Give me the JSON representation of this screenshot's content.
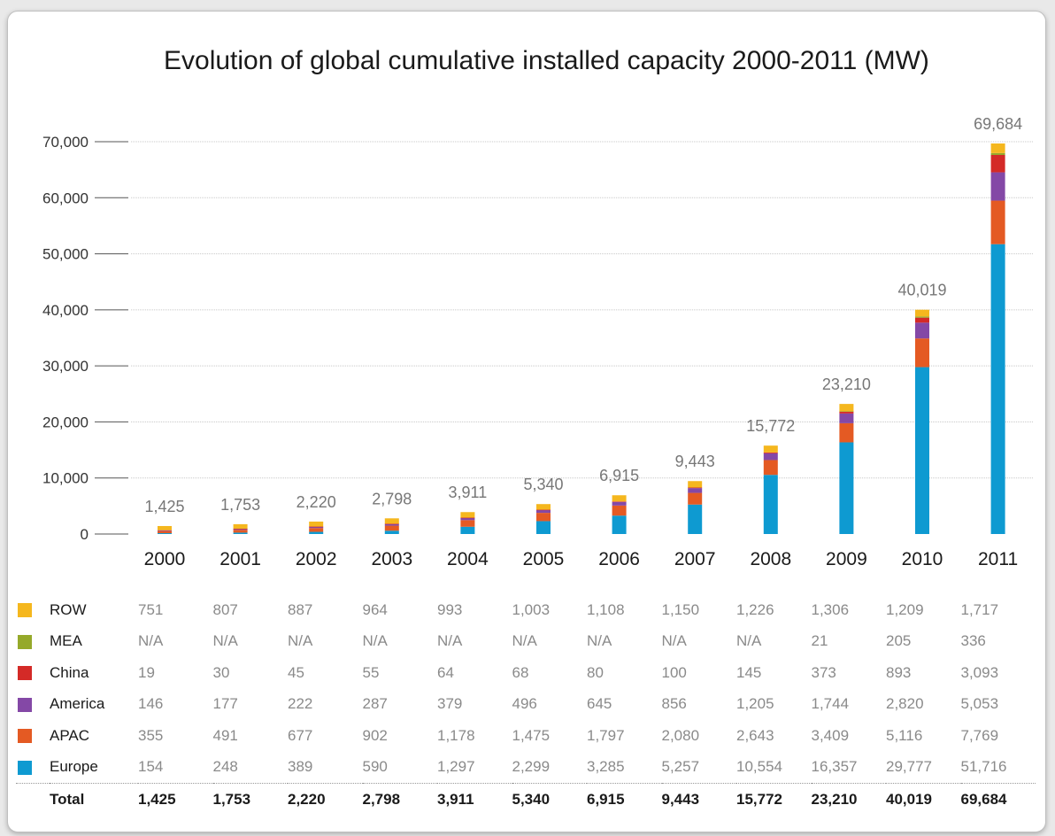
{
  "chart_data": {
    "type": "bar",
    "stacked": true,
    "title": "Evolution of global cumulative installed capacity 2000-2011 (MW)",
    "categories": [
      "2000",
      "2001",
      "2002",
      "2003",
      "2004",
      "2005",
      "2006",
      "2007",
      "2008",
      "2009",
      "2010",
      "2011"
    ],
    "y_ticks": [
      "0",
      "10,000",
      "20,000",
      "30,000",
      "40,000",
      "50,000",
      "60,000",
      "70,000"
    ],
    "ylim": [
      0,
      70000
    ],
    "grid": true,
    "series": [
      {
        "name": "Europe",
        "color": "#0e9ad1",
        "values": [
          154,
          248,
          389,
          590,
          1297,
          2299,
          3285,
          5257,
          10554,
          16357,
          29777,
          51716
        ]
      },
      {
        "name": "APAC",
        "color": "#e45a23",
        "values": [
          355,
          491,
          677,
          902,
          1178,
          1475,
          1797,
          2080,
          2643,
          3409,
          5116,
          7769
        ]
      },
      {
        "name": "America",
        "color": "#8448a6",
        "values": [
          146,
          177,
          222,
          287,
          379,
          496,
          645,
          856,
          1205,
          1744,
          2820,
          5053
        ]
      },
      {
        "name": "China",
        "color": "#d42a27",
        "values": [
          19,
          30,
          45,
          55,
          64,
          68,
          80,
          100,
          145,
          373,
          893,
          3093
        ]
      },
      {
        "name": "MEA",
        "color": "#95a92a",
        "values": [
          0,
          0,
          0,
          0,
          0,
          0,
          0,
          0,
          0,
          21,
          205,
          336
        ]
      },
      {
        "name": "ROW",
        "color": "#f5b71e",
        "values": [
          751,
          807,
          887,
          964,
          993,
          1003,
          1108,
          1150,
          1226,
          1306,
          1209,
          1717
        ]
      }
    ],
    "totals": [
      1425,
      1753,
      2220,
      2798,
      3911,
      5340,
      6915,
      9443,
      15772,
      23210,
      40019,
      69684
    ],
    "total_labels": [
      "1,425",
      "1,753",
      "2,220",
      "2,798",
      "3,911",
      "5,340",
      "6,915",
      "9,443",
      "15,772",
      "23,210",
      "40,019",
      "69,684"
    ]
  },
  "table": {
    "rows": [
      {
        "name": "ROW",
        "color": "#f5b71e",
        "cells": [
          "751",
          "807",
          "887",
          "964",
          "993",
          "1,003",
          "1,108",
          "1,150",
          "1,226",
          "1,306",
          "1,209",
          "1,717"
        ]
      },
      {
        "name": "MEA",
        "color": "#95a92a",
        "cells": [
          "N/A",
          "N/A",
          "N/A",
          "N/A",
          "N/A",
          "N/A",
          "N/A",
          "N/A",
          "N/A",
          "21",
          "205",
          "336"
        ]
      },
      {
        "name": "China",
        "color": "#d42a27",
        "cells": [
          "19",
          "30",
          "45",
          "55",
          "64",
          "68",
          "80",
          "100",
          "145",
          "373",
          "893",
          "3,093"
        ]
      },
      {
        "name": "America",
        "color": "#8448a6",
        "cells": [
          "146",
          "177",
          "222",
          "287",
          "379",
          "496",
          "645",
          "856",
          "1,205",
          "1,744",
          "2,820",
          "5,053"
        ]
      },
      {
        "name": "APAC",
        "color": "#e45a23",
        "cells": [
          "355",
          "491",
          "677",
          "902",
          "1,178",
          "1,475",
          "1,797",
          "2,080",
          "2,643",
          "3,409",
          "5,116",
          "7,769"
        ]
      },
      {
        "name": "Europe",
        "color": "#0e9ad1",
        "cells": [
          "154",
          "248",
          "389",
          "590",
          "1,297",
          "2,299",
          "3,285",
          "5,257",
          "10,554",
          "16,357",
          "29,777",
          "51,716"
        ]
      }
    ],
    "total": {
      "name": "Total",
      "cells": [
        "1,425",
        "1,753",
        "2,220",
        "2,798",
        "3,911",
        "5,340",
        "6,915",
        "9,443",
        "15,772",
        "23,210",
        "40,019",
        "69,684"
      ]
    }
  }
}
